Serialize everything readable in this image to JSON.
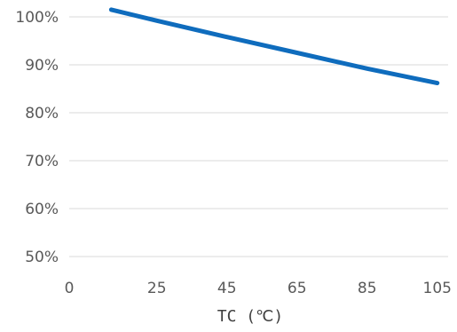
{
  "chart_data": {
    "type": "line",
    "title": "",
    "xlabel": "TC (℃)",
    "ylabel": "",
    "x_ticks": [
      "0",
      "25",
      "45",
      "65",
      "85",
      "105"
    ],
    "y_ticks": [
      "50%",
      "60%",
      "70%",
      "80%",
      "90%",
      "100%"
    ],
    "x": [
      12,
      25,
      45,
      65,
      85,
      105
    ],
    "values": [
      101.5,
      99.2,
      95.8,
      92.5,
      89.2,
      86.2
    ],
    "ylim": [
      50,
      100
    ],
    "grid": "horizontal",
    "legend": "none",
    "series_color": "#0f6cbd",
    "grid_color": "#d9d9d9",
    "text_color": "#595959"
  }
}
